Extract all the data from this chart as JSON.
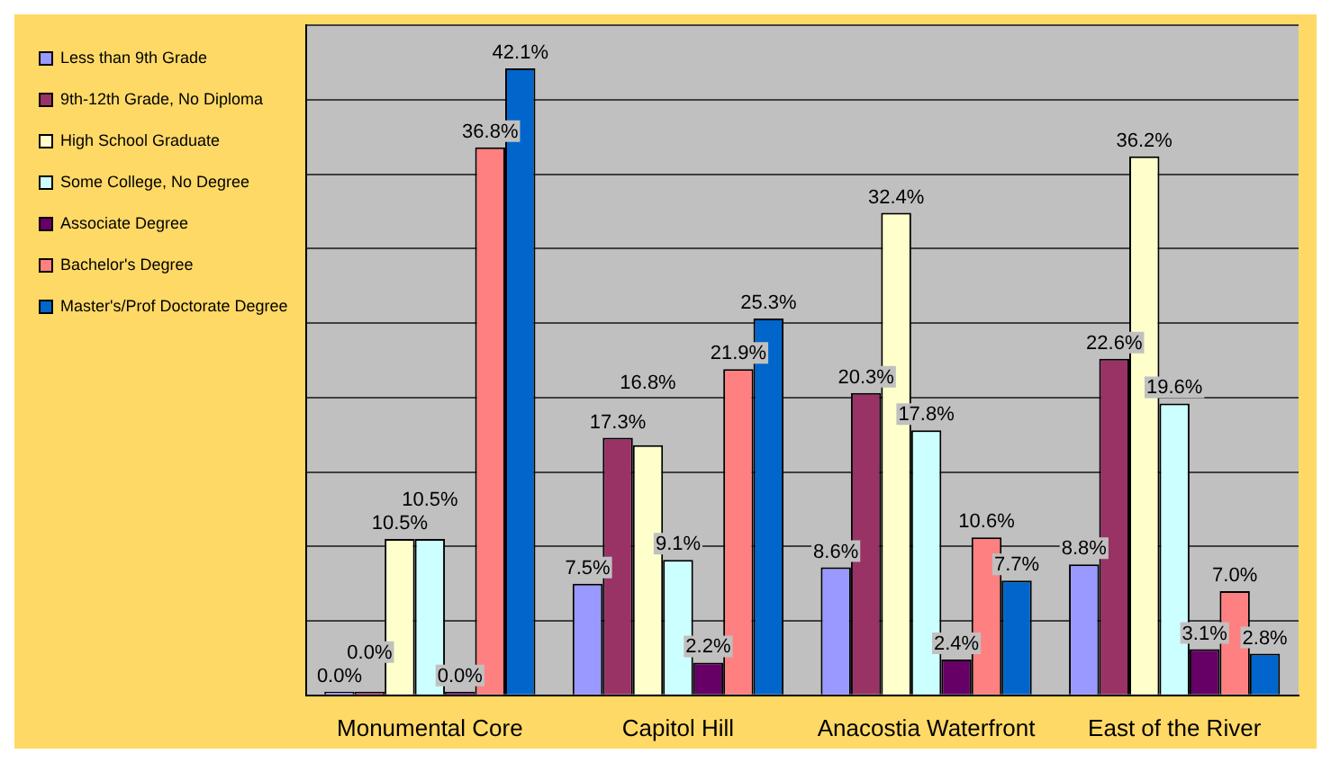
{
  "chart_data": {
    "type": "bar",
    "categories": [
      "Monumental Core",
      "Capitol Hill",
      "Anacostia Waterfront",
      "East of the River"
    ],
    "series": [
      {
        "name": "Less than 9th Grade",
        "color": "#9999ff",
        "values": [
          0.0,
          7.5,
          8.6,
          8.8
        ],
        "value_labels": [
          "0.0%",
          "7.5%",
          "8.6%",
          "8.8%"
        ]
      },
      {
        "name": "9th-12th Grade, No Diploma",
        "color": "#993366",
        "values": [
          0.0,
          17.3,
          20.3,
          22.6
        ],
        "value_labels": [
          "0.0%",
          "17.3%",
          "20.3%",
          "22.6%"
        ]
      },
      {
        "name": "High School Graduate",
        "color": "#ffffcc",
        "values": [
          10.5,
          16.8,
          32.4,
          36.2
        ],
        "value_labels": [
          "10.5%",
          "16.8%",
          "32.4%",
          "36.2%"
        ]
      },
      {
        "name": "Some College, No Degree",
        "color": "#ccffff",
        "values": [
          10.5,
          9.1,
          17.8,
          19.6
        ],
        "value_labels": [
          "10.5%",
          "9.1%",
          "17.8%",
          "19.6%"
        ]
      },
      {
        "name": "Associate Degree",
        "color": "#660066",
        "values": [
          0.0,
          2.2,
          2.4,
          3.1
        ],
        "value_labels": [
          "0.0%",
          "2.2%",
          "2.4%",
          "3.1%"
        ]
      },
      {
        "name": "Bachelor's Degree",
        "color": "#ff8080",
        "values": [
          36.8,
          21.9,
          10.6,
          7.0
        ],
        "value_labels": [
          "36.8%",
          "21.9%",
          "10.6%",
          "7.0%"
        ]
      },
      {
        "name": "Master's/Prof Doctorate Degree",
        "color": "#0066cc",
        "values": [
          42.1,
          25.3,
          7.7,
          2.8
        ],
        "value_labels": [
          "42.1%",
          "25.3%",
          "7.7%",
          "2.8%"
        ]
      }
    ],
    "ylim": [
      0,
      45
    ],
    "grid": "y",
    "tick_labels": "x",
    "legend": "left"
  }
}
